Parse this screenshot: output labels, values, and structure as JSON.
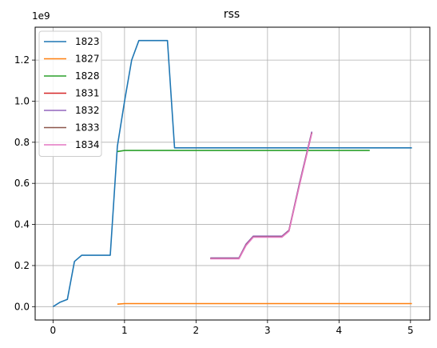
{
  "chart_data": {
    "type": "line",
    "title": "rss",
    "xlabel": "",
    "ylabel": "",
    "y_offset_label": "1e9",
    "xlim": [
      -0.25,
      5.27
    ],
    "ylim": [
      -0.065,
      1.36
    ],
    "x_ticks": [
      0,
      1,
      2,
      3,
      4,
      5
    ],
    "y_ticks": [
      0.0,
      0.2,
      0.4,
      0.6,
      0.8,
      1.0,
      1.2
    ],
    "grid": true,
    "legend_position": "top-left",
    "series": [
      {
        "name": "1823",
        "color": "#1f77b4",
        "points": [
          [
            0,
            0.0
          ],
          [
            0.1,
            0.022
          ],
          [
            0.2,
            0.035
          ],
          [
            0.3,
            0.22
          ],
          [
            0.4,
            0.25
          ],
          [
            0.5,
            0.25
          ],
          [
            0.6,
            0.25
          ],
          [
            0.7,
            0.25
          ],
          [
            0.8,
            0.25
          ],
          [
            0.9,
            0.78
          ],
          [
            1.0,
            1.0
          ],
          [
            1.1,
            1.2
          ],
          [
            1.2,
            1.295
          ],
          [
            1.3,
            1.295
          ],
          [
            1.4,
            1.295
          ],
          [
            1.5,
            1.295
          ],
          [
            1.6,
            1.295
          ],
          [
            1.7,
            0.773
          ],
          [
            2.0,
            0.773
          ],
          [
            3.0,
            0.773
          ],
          [
            4.0,
            0.773
          ],
          [
            5.02,
            0.773
          ]
        ]
      },
      {
        "name": "1827",
        "color": "#ff7f0e",
        "points": [
          [
            0.9,
            0.012
          ],
          [
            1.0,
            0.015
          ],
          [
            2.0,
            0.015
          ],
          [
            3.0,
            0.015
          ],
          [
            4.0,
            0.015
          ],
          [
            5.02,
            0.015
          ]
        ]
      },
      {
        "name": "1828",
        "color": "#2ca02c",
        "points": [
          [
            0.9,
            0.755
          ],
          [
            1.0,
            0.76
          ],
          [
            2.0,
            0.76
          ],
          [
            3.0,
            0.76
          ],
          [
            4.0,
            0.76
          ],
          [
            4.43,
            0.76
          ]
        ]
      },
      {
        "name": "1831",
        "color": "#d62728",
        "points": [
          [
            2.2,
            0.235
          ],
          [
            2.6,
            0.235
          ],
          [
            2.7,
            0.3
          ],
          [
            2.8,
            0.34
          ],
          [
            3.2,
            0.34
          ],
          [
            3.3,
            0.37
          ],
          [
            3.45,
            0.6
          ],
          [
            3.62,
            0.848
          ]
        ]
      },
      {
        "name": "1832",
        "color": "#9467bd",
        "points": [
          [
            2.2,
            0.237
          ],
          [
            2.6,
            0.237
          ],
          [
            2.7,
            0.305
          ],
          [
            2.8,
            0.343
          ],
          [
            3.2,
            0.343
          ],
          [
            3.3,
            0.372
          ],
          [
            3.45,
            0.605
          ],
          [
            3.62,
            0.852
          ]
        ]
      },
      {
        "name": "1833",
        "color": "#8c564b",
        "points": [
          [
            2.2,
            0.234
          ],
          [
            2.6,
            0.234
          ],
          [
            2.7,
            0.3
          ],
          [
            2.8,
            0.339
          ],
          [
            3.2,
            0.339
          ],
          [
            3.3,
            0.369
          ],
          [
            3.45,
            0.598
          ],
          [
            3.62,
            0.846
          ]
        ]
      },
      {
        "name": "1834",
        "color": "#e377c2",
        "points": [
          [
            2.2,
            0.233
          ],
          [
            2.6,
            0.233
          ],
          [
            2.7,
            0.298
          ],
          [
            2.8,
            0.338
          ],
          [
            3.2,
            0.338
          ],
          [
            3.3,
            0.367
          ],
          [
            3.45,
            0.595
          ],
          [
            3.62,
            0.844
          ]
        ]
      }
    ]
  }
}
